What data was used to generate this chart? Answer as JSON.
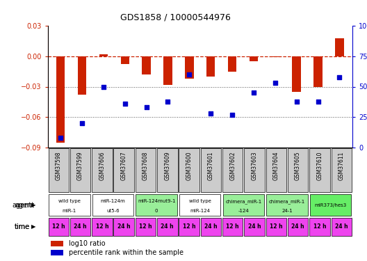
{
  "title": "GDS1858 / 10000544976",
  "samples": [
    "GSM37598",
    "GSM37599",
    "GSM37606",
    "GSM37607",
    "GSM37608",
    "GSM37609",
    "GSM37600",
    "GSM37601",
    "GSM37602",
    "GSM37603",
    "GSM37604",
    "GSM37605",
    "GSM37610",
    "GSM37611"
  ],
  "log10_ratio": [
    -0.085,
    -0.038,
    0.002,
    -0.008,
    -0.018,
    -0.028,
    -0.022,
    -0.02,
    -0.015,
    -0.005,
    -0.001,
    -0.035,
    -0.03,
    0.018
  ],
  "percentile_rank": [
    8,
    20,
    50,
    36,
    33,
    38,
    60,
    28,
    27,
    45,
    53,
    38,
    38,
    58
  ],
  "ylim_left": [
    -0.09,
    0.03
  ],
  "ylim_right": [
    0,
    100
  ],
  "yticks_left": [
    -0.09,
    -0.06,
    -0.03,
    0.0,
    0.03
  ],
  "yticks_right": [
    0,
    25,
    50,
    75,
    100
  ],
  "bar_color": "#cc2200",
  "scatter_color": "#0000cc",
  "agent_groups": [
    {
      "label": "wild type\nmiR-1",
      "cols": [
        0,
        1
      ],
      "color": "#ffffff"
    },
    {
      "label": "miR-124m\nut5-6",
      "cols": [
        2,
        3
      ],
      "color": "#ffffff"
    },
    {
      "label": "miR-124mut9-1\n0",
      "cols": [
        4,
        5
      ],
      "color": "#99ee99"
    },
    {
      "label": "wild type\nmiR-124",
      "cols": [
        6,
        7
      ],
      "color": "#ffffff"
    },
    {
      "label": "chimera_miR-1\n-124",
      "cols": [
        8,
        9
      ],
      "color": "#99ee99"
    },
    {
      "label": "chimera_miR-1\n24-1",
      "cols": [
        10,
        11
      ],
      "color": "#99ee99"
    },
    {
      "label": "miR373/hes3",
      "cols": [
        12,
        13
      ],
      "color": "#66ee66"
    }
  ],
  "time_labels": [
    "12 h",
    "24 h",
    "12 h",
    "24 h",
    "12 h",
    "24 h",
    "12 h",
    "24 h",
    "12 h",
    "24 h",
    "12 h",
    "24 h",
    "12 h",
    "24 h"
  ],
  "time_color": "#ee44ee",
  "header_color": "#cccccc",
  "grid_color": "#888888",
  "dashed_color": "#cc2200",
  "dotted_color": "#555555"
}
